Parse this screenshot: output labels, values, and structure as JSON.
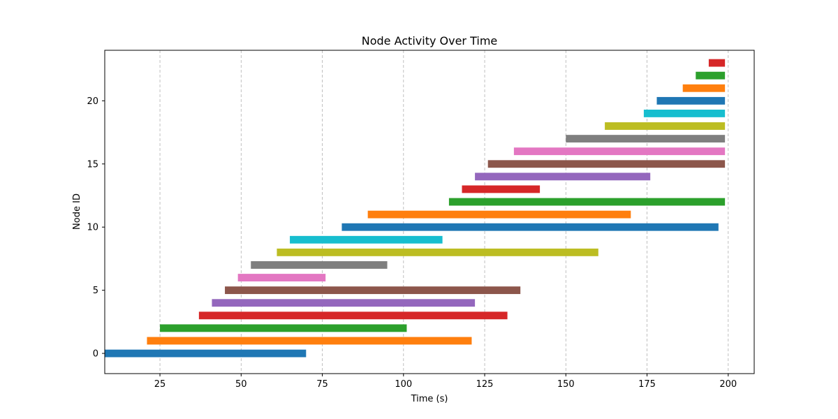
{
  "chart_data": {
    "type": "bar",
    "orientation": "horizontal-range",
    "title": "Node Activity Over Time",
    "xlabel": "Time (s)",
    "ylabel": "Node ID",
    "xlim": [
      8,
      208
    ],
    "ylim": [
      -1.6,
      24.0
    ],
    "xticks": [
      25,
      50,
      75,
      100,
      125,
      150,
      175,
      200
    ],
    "yticks": [
      0,
      5,
      10,
      15,
      20
    ],
    "grid": "x-dashed",
    "legend": "none",
    "bars": [
      {
        "node": 0,
        "start": 8,
        "end": 70,
        "color": "#1f77b4"
      },
      {
        "node": 1,
        "start": 21,
        "end": 121,
        "color": "#ff7f0e"
      },
      {
        "node": 2,
        "start": 25,
        "end": 101,
        "color": "#2ca02c"
      },
      {
        "node": 3,
        "start": 37,
        "end": 132,
        "color": "#d62728"
      },
      {
        "node": 4,
        "start": 41,
        "end": 122,
        "color": "#9467bd"
      },
      {
        "node": 5,
        "start": 45,
        "end": 136,
        "color": "#8c564b"
      },
      {
        "node": 6,
        "start": 49,
        "end": 76,
        "color": "#e377c2"
      },
      {
        "node": 7,
        "start": 53,
        "end": 95,
        "color": "#7f7f7f"
      },
      {
        "node": 8,
        "start": 61,
        "end": 160,
        "color": "#bcbd22"
      },
      {
        "node": 9,
        "start": 65,
        "end": 112,
        "color": "#17becf"
      },
      {
        "node": 10,
        "start": 81,
        "end": 197,
        "color": "#1f77b4"
      },
      {
        "node": 11,
        "start": 89,
        "end": 170,
        "color": "#ff7f0e"
      },
      {
        "node": 12,
        "start": 114,
        "end": 199,
        "color": "#2ca02c"
      },
      {
        "node": 13,
        "start": 118,
        "end": 142,
        "color": "#d62728"
      },
      {
        "node": 14,
        "start": 122,
        "end": 176,
        "color": "#9467bd"
      },
      {
        "node": 15,
        "start": 126,
        "end": 199,
        "color": "#8c564b"
      },
      {
        "node": 16,
        "start": 134,
        "end": 199,
        "color": "#e377c2"
      },
      {
        "node": 17,
        "start": 150,
        "end": 199,
        "color": "#7f7f7f"
      },
      {
        "node": 18,
        "start": 162,
        "end": 199,
        "color": "#bcbd22"
      },
      {
        "node": 19,
        "start": 174,
        "end": 199,
        "color": "#17becf"
      },
      {
        "node": 20,
        "start": 178,
        "end": 199,
        "color": "#1f77b4"
      },
      {
        "node": 21,
        "start": 186,
        "end": 199,
        "color": "#ff7f0e"
      },
      {
        "node": 22,
        "start": 190,
        "end": 199,
        "color": "#2ca02c"
      },
      {
        "node": 23,
        "start": 194,
        "end": 199,
        "color": "#d62728"
      }
    ]
  }
}
